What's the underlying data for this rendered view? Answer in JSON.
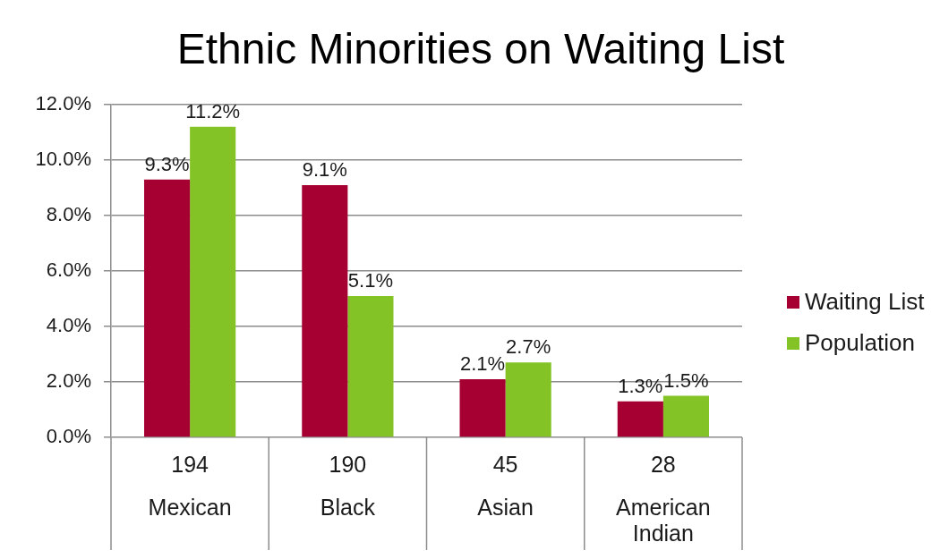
{
  "chart_data": {
    "type": "bar",
    "title": "Ethnic Minorities on Waiting List",
    "categories": [
      "194\nMexican",
      "190\nBlack",
      "45\nAsian",
      "28\nAmerican Indian"
    ],
    "series": [
      {
        "name": "Waiting List",
        "color": "#a60032",
        "values": [
          9.3,
          9.1,
          2.1,
          1.3
        ],
        "value_labels": [
          "9.3%",
          "9.1%",
          "2.1%",
          "1.3%"
        ]
      },
      {
        "name": "Population",
        "color": "#84c326",
        "values": [
          11.2,
          5.1,
          2.7,
          1.5
        ],
        "value_labels": [
          "11.2%",
          "5.1%",
          "2.7%",
          "1.5%"
        ]
      }
    ],
    "ylim": [
      0,
      12
    ],
    "yticks": [
      {
        "value": 0,
        "label": "0.0%"
      },
      {
        "value": 2,
        "label": "2.0%"
      },
      {
        "value": 4,
        "label": "4.0%"
      },
      {
        "value": 6,
        "label": "6.0%"
      },
      {
        "value": 8,
        "label": "8.0%"
      },
      {
        "value": 10,
        "label": "10.0%"
      },
      {
        "value": 12,
        "label": "12.0%"
      }
    ],
    "grid": "y",
    "legend": "right"
  }
}
